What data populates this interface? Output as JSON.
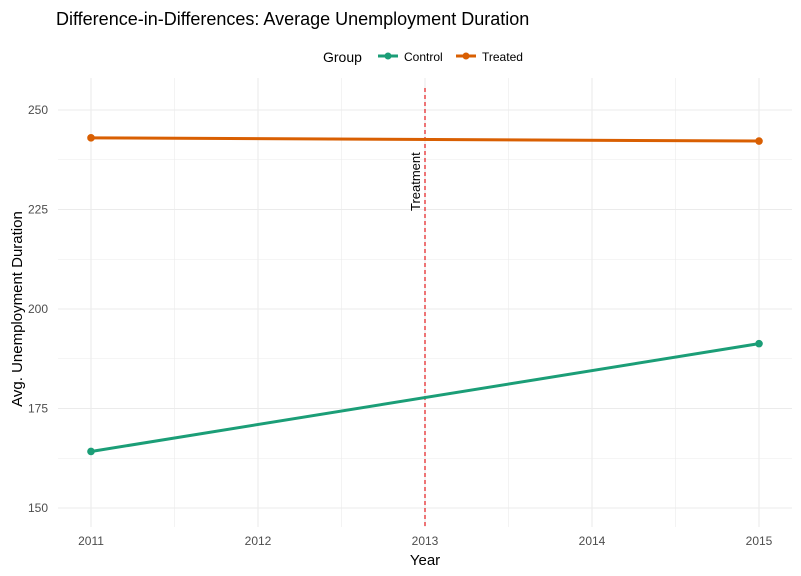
{
  "chart_data": {
    "type": "line",
    "title": "Difference-in-Differences: Average Unemployment Duration",
    "xlabel": "Year",
    "ylabel": "Avg. Unemployment Duration",
    "legend": {
      "title": "Group",
      "position": "top"
    },
    "x_ticks": [
      "2011",
      "2012",
      "2013",
      "2014",
      "2015"
    ],
    "x_range": [
      2011,
      2015
    ],
    "y_ticks": [
      150,
      175,
      200,
      225,
      250
    ],
    "ylim": [
      150,
      250
    ],
    "grid": true,
    "series": [
      {
        "name": "Control",
        "color": "#1b9e77",
        "x": [
          2011,
          2015
        ],
        "y": [
          164.2,
          191.3
        ]
      },
      {
        "name": "Treated",
        "color": "#d95f02",
        "x": [
          2011,
          2015
        ],
        "y": [
          243.0,
          242.2
        ]
      }
    ],
    "annotations": [
      {
        "type": "vline",
        "x": 2013,
        "label": "Treatment",
        "color": "#e41a1c",
        "style": "dashed"
      }
    ]
  }
}
